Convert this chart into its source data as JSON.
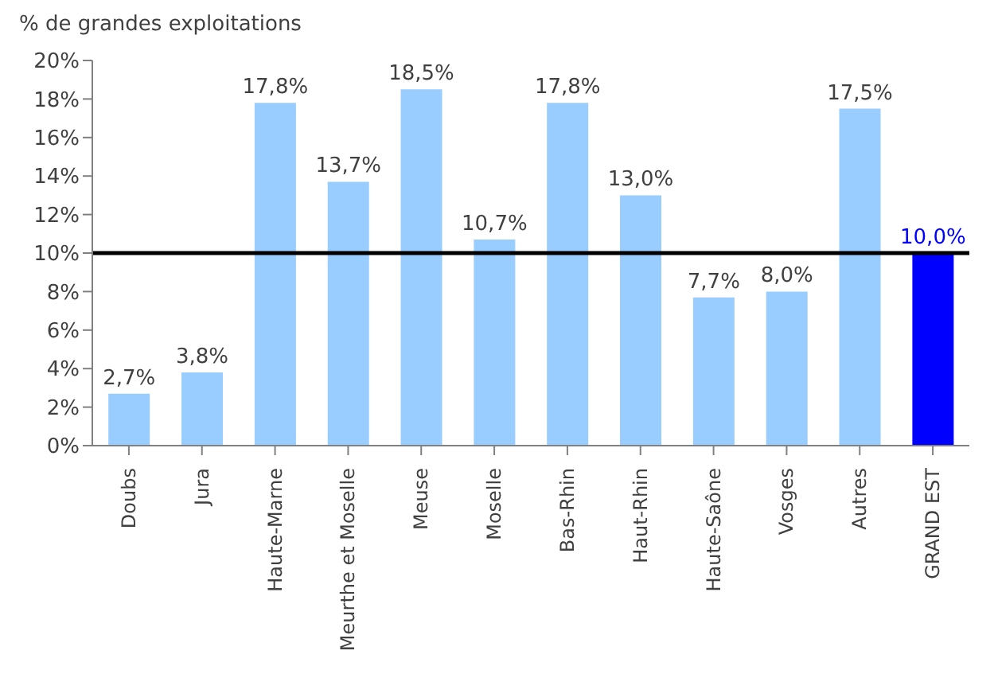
{
  "chart_data": {
    "type": "bar",
    "ylabel": "% de grandes exploitations",
    "categories": [
      "Doubs",
      "Jura",
      "Haute-Marne",
      "Meurthe et Moselle",
      "Meuse",
      "Moselle",
      "Bas-Rhin",
      "Haut-Rhin",
      "Haute-Saône",
      "Vosges",
      "Autres",
      "GRAND EST"
    ],
    "values": [
      2.7,
      3.8,
      17.8,
      13.7,
      18.5,
      10.7,
      17.8,
      13.0,
      7.7,
      8.0,
      17.5,
      10.0
    ],
    "value_labels": [
      "2,7%",
      "3,8%",
      "17,8%",
      "13,7%",
      "18,5%",
      "10,7%",
      "17,8%",
      "13,0%",
      "7,7%",
      "8,0%",
      "17,5%",
      "10,0%"
    ],
    "colors": [
      "#99ccff",
      "#99ccff",
      "#99ccff",
      "#99ccff",
      "#99ccff",
      "#99ccff",
      "#99ccff",
      "#99ccff",
      "#99ccff",
      "#99ccff",
      "#99ccff",
      "#0000ff"
    ],
    "ylim": [
      0,
      20
    ],
    "yticks": [
      {
        "value": 0,
        "label": "0%"
      },
      {
        "value": 2,
        "label": "2%"
      },
      {
        "value": 4,
        "label": "4%"
      },
      {
        "value": 6,
        "label": "6%"
      },
      {
        "value": 8,
        "label": "8%"
      },
      {
        "value": 10,
        "label": "10%"
      },
      {
        "value": 12,
        "label": "12%"
      },
      {
        "value": 14,
        "label": "14%"
      },
      {
        "value": 16,
        "label": "16%"
      },
      {
        "value": 18,
        "label": "18%"
      },
      {
        "value": 20,
        "label": "20%"
      }
    ],
    "ref_lines": [
      {
        "axis": "y",
        "value": 10,
        "color": "#000000"
      }
    ],
    "grid": false,
    "legend": false
  }
}
